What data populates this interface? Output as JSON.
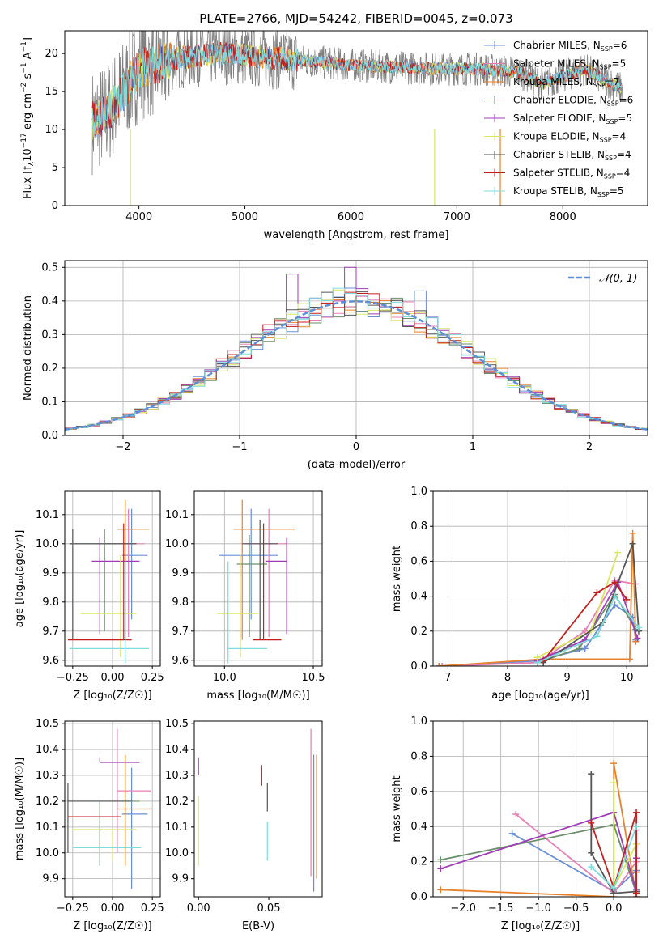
{
  "colors": {
    "Chabrier MILES": "#6a8fd8",
    "Salpeter MILES": "#e77fb6",
    "Kroupa MILES": "#e8812a",
    "Chabrier ELODIE": "#6a8f6a",
    "Salpeter ELODIE": "#a03cb8",
    "Kroupa ELODIE": "#d8e860",
    "Chabrier STELIB": "#555555",
    "Salpeter STELIB": "#c41e1e",
    "Kroupa STELIB": "#7fdcdc",
    "gaussian": "#5b8ed6",
    "spectrum_grey": "#808080"
  },
  "legend1": [
    {
      "name": "Chabrier MILES",
      "label": "Chabrier MILES, N",
      "sub": "SSP",
      "tail": "=6"
    },
    {
      "name": "Salpeter MILES",
      "label": "Salpeter MILES, N",
      "sub": "SSP",
      "tail": "=5"
    },
    {
      "name": "Kroupa MILES",
      "label": "Kroupa MILES, N",
      "sub": "SSP",
      "tail": "=7"
    },
    {
      "name": "Chabrier ELODIE",
      "label": "Chabrier ELODIE, N",
      "sub": "SSP",
      "tail": "=6"
    },
    {
      "name": "Salpeter ELODIE",
      "label": "Salpeter ELODIE, N",
      "sub": "SSP",
      "tail": "=5"
    },
    {
      "name": "Kroupa ELODIE",
      "label": "Kroupa ELODIE, N",
      "sub": "SSP",
      "tail": "=4"
    },
    {
      "name": "Chabrier STELIB",
      "label": "Chabrier STELIB, N",
      "sub": "SSP",
      "tail": "=4"
    },
    {
      "name": "Salpeter STELIB",
      "label": "Salpeter STELIB, N",
      "sub": "SSP",
      "tail": "=4"
    },
    {
      "name": "Kroupa STELIB",
      "label": "Kroupa STELIB, N",
      "sub": "SSP",
      "tail": "=5"
    }
  ],
  "chart_data": [
    {
      "id": "spectrum",
      "type": "line",
      "title": "PLATE=2766, MJD=54242, FIBERID=0045, z=0.073",
      "xlabel": "wavelength [Angstrom, rest frame]",
      "ylabel": "Flux [f",
      "ylabel_parts": [
        "Flux [f",
        "λ",
        "10",
        "−17",
        " erg cm",
        "−2",
        " s",
        "−1",
        " A",
        "−1",
        "]"
      ],
      "xlim": [
        3300,
        8800
      ],
      "ylim": [
        0,
        23
      ],
      "xticks": [
        4000,
        5000,
        6000,
        7000,
        8000
      ],
      "yticks": [
        0,
        5,
        10,
        15,
        20
      ],
      "grid": false,
      "legend_position": "upper-right",
      "data_anchor": {
        "x": [
          3550,
          3700,
          4000,
          4400,
          4800,
          5200,
          5600,
          6000,
          6400,
          6800,
          7200,
          7600,
          7800,
          8200,
          8600
        ],
        "y": [
          11,
          12,
          18,
          19.5,
          20,
          19.5,
          19,
          18.5,
          18.2,
          18,
          18,
          17.5,
          16,
          18,
          15
        ]
      }
    },
    {
      "id": "residuals",
      "type": "bar",
      "xlabel": "(data-model)/error",
      "ylabel": "Normed distribution",
      "xlim": [
        -2.5,
        2.5
      ],
      "ylim": [
        0,
        0.52
      ],
      "xticks": [
        -2,
        -1,
        0,
        1,
        2
      ],
      "yticks": [
        0.0,
        0.1,
        0.2,
        0.3,
        0.4,
        0.5
      ],
      "grid": true,
      "legend": "𝒩(0, 1)",
      "legend_position": "upper-right",
      "bin_width": 0.1,
      "peak_bins": [
        {
          "x": -0.5,
          "y": 0.48,
          "series": "Salpeter ELODIE"
        },
        {
          "x": -0.05,
          "y": 0.5,
          "series": "Salpeter ELODIE"
        },
        {
          "x": 0.55,
          "y": 0.43,
          "series": "Chabrier MILES"
        }
      ]
    },
    {
      "id": "age_vs_Z",
      "type": "scatter",
      "xlabel": "Z [log₁₀(Z/Z☉)]",
      "ylabel": "age  [log₁₀(age/yr)]",
      "xlim": [
        -0.3,
        0.3
      ],
      "ylim": [
        9.58,
        10.18
      ],
      "xticks": [
        -0.25,
        0.0,
        0.25
      ],
      "yticks": [
        9.6,
        9.7,
        9.8,
        9.9,
        10.0,
        10.1
      ],
      "grid": true,
      "points": [
        {
          "series": "Chabrier MILES",
          "x": 0.12,
          "xerr": [
            0.06,
            0.1
          ],
          "y": 9.96,
          "yerr": [
            0.22,
            0.16
          ]
        },
        {
          "series": "Salpeter MILES",
          "x": 0.1,
          "xerr": [
            0.15,
            0.1
          ],
          "y": 10.0,
          "yerr": [
            0.32,
            0.12
          ]
        },
        {
          "series": "Kroupa MILES",
          "x": 0.08,
          "xerr": [
            0.05,
            0.15
          ],
          "y": 10.05,
          "yerr": [
            0.38,
            0.1
          ]
        },
        {
          "series": "Chabrier ELODIE",
          "x": -0.05,
          "xerr": [
            0.22,
            0.2
          ],
          "y": 10.0,
          "yerr": [
            0.3,
            0.05
          ]
        },
        {
          "series": "Salpeter ELODIE",
          "x": -0.08,
          "xerr": [
            0.05,
            0.25
          ],
          "y": 9.94,
          "yerr": [
            0.25,
            0.08
          ]
        },
        {
          "series": "Kroupa ELODIE",
          "x": 0.05,
          "xerr": [
            0.25,
            0.1
          ],
          "y": 9.76,
          "yerr": [
            0.15,
            0.2
          ]
        },
        {
          "series": "Chabrier STELIB",
          "x": -0.25,
          "xerr": [
            0.02,
            0.4
          ],
          "y": 10.0,
          "yerr": [
            0.33,
            0.05
          ]
        },
        {
          "series": "Salpeter STELIB",
          "x": 0.07,
          "xerr": [
            0.35,
            0.05
          ],
          "y": 9.67,
          "yerr": [
            0.0,
            0.4
          ]
        },
        {
          "series": "Kroupa STELIB",
          "x": 0.08,
          "xerr": [
            0.35,
            0.15
          ],
          "y": 9.64,
          "yerr": [
            0.05,
            0.3
          ]
        }
      ]
    },
    {
      "id": "age_vs_mass",
      "type": "scatter",
      "xlabel": "mass [log₁₀(M/M☉)]",
      "xlim": [
        9.83,
        10.55
      ],
      "ylim": [
        9.58,
        10.18
      ],
      "xticks": [
        10.0,
        10.5
      ],
      "yticks": [
        9.6,
        9.7,
        9.8,
        9.9,
        10.0,
        10.1
      ],
      "grid": true,
      "points": [
        {
          "series": "Chabrier MILES",
          "x": 10.15,
          "xerr": [
            0.18,
            0.15
          ],
          "y": 9.96,
          "yerr": [
            0.22,
            0.16
          ]
        },
        {
          "series": "Salpeter MILES",
          "x": 10.25,
          "xerr": [
            0.15,
            0.1
          ],
          "y": 10.0,
          "yerr": [
            0.32,
            0.12
          ]
        },
        {
          "series": "Kroupa MILES",
          "x": 10.1,
          "xerr": [
            0.05,
            0.3
          ],
          "y": 10.05,
          "yerr": [
            0.38,
            0.1
          ]
        },
        {
          "series": "Chabrier ELODIE",
          "x": 10.14,
          "xerr": [
            0.07,
            0.1
          ],
          "y": 9.93,
          "yerr": [
            0.25,
            0.1
          ]
        },
        {
          "series": "Salpeter ELODIE",
          "x": 10.35,
          "xerr": [
            0.12,
            0.0
          ],
          "y": 9.94,
          "yerr": [
            0.25,
            0.08
          ]
        },
        {
          "series": "Kroupa ELODIE",
          "x": 10.09,
          "xerr": [
            0.13,
            0.1
          ],
          "y": 9.76,
          "yerr": [
            0.15,
            0.2
          ]
        },
        {
          "series": "Chabrier STELIB",
          "x": 10.2,
          "xerr": [
            0.1,
            0.1
          ],
          "y": 10.0,
          "yerr": [
            0.33,
            0.08
          ]
        },
        {
          "series": "Salpeter STELIB",
          "x": 10.22,
          "xerr": [
            0.06,
            0.1
          ],
          "y": 9.67,
          "yerr": [
            0.0,
            0.4
          ]
        },
        {
          "series": "Kroupa STELIB",
          "x": 10.02,
          "xerr": [
            0.0,
            0.22
          ],
          "y": 9.64,
          "yerr": [
            0.05,
            0.3
          ]
        }
      ]
    },
    {
      "id": "weight_vs_age",
      "type": "line",
      "xlabel": "age  [log₁₀(age/yr)]",
      "ylabel": "mass weight",
      "xlim": [
        6.75,
        10.35
      ],
      "ylim": [
        0,
        1
      ],
      "xticks": [
        7,
        8,
        9,
        10
      ],
      "yticks": [
        0.0,
        0.2,
        0.4,
        0.6,
        0.8,
        1.0
      ],
      "grid": true,
      "series": [
        {
          "name": "Chabrier MILES",
          "x": [
            6.85,
            8.5,
            9.3,
            9.8,
            10.1,
            10.15
          ],
          "y": [
            0.0,
            0.03,
            0.1,
            0.35,
            0.28,
            0.15
          ]
        },
        {
          "name": "Salpeter MILES",
          "x": [
            6.9,
            8.5,
            9.3,
            9.8,
            10.15
          ],
          "y": [
            0.0,
            0.02,
            0.2,
            0.49,
            0.47
          ]
        },
        {
          "name": "Kroupa MILES",
          "x": [
            6.85,
            8.6,
            10.05,
            10.1,
            10.15
          ],
          "y": [
            0.0,
            0.04,
            0.04,
            0.76,
            0.14
          ]
        },
        {
          "name": "Chabrier ELODIE",
          "x": [
            8.5,
            9.2,
            9.8,
            10.15
          ],
          "y": [
            0.02,
            0.1,
            0.41,
            0.21
          ]
        },
        {
          "name": "Salpeter ELODIE",
          "x": [
            8.5,
            9.3,
            9.85,
            10.18
          ],
          "y": [
            0.03,
            0.15,
            0.48,
            0.16
          ]
        },
        {
          "name": "Kroupa ELODIE",
          "x": [
            8.5,
            9.4,
            9.85
          ],
          "y": [
            0.05,
            0.2,
            0.65
          ]
        },
        {
          "name": "Chabrier STELIB",
          "x": [
            8.6,
            9.6,
            10.1,
            10.2
          ],
          "y": [
            0.02,
            0.25,
            0.7,
            0.2
          ]
        },
        {
          "name": "Salpeter STELIB",
          "x": [
            8.6,
            9.5,
            9.8,
            10.0
          ],
          "y": [
            0.03,
            0.42,
            0.48,
            0.38
          ]
        },
        {
          "name": "Kroupa STELIB",
          "x": [
            8.5,
            9.5,
            9.8,
            10.2
          ],
          "y": [
            0.02,
            0.17,
            0.4,
            0.22
          ]
        }
      ]
    },
    {
      "id": "mass_vs_Z",
      "type": "scatter",
      "xlabel": "Z [log₁₀(Z/Z☉)]",
      "ylabel": "mass [log₁₀(M/M☉)]",
      "xlim": [
        -0.3,
        0.3
      ],
      "ylim": [
        9.83,
        10.51
      ],
      "xticks": [
        -0.25,
        0.0,
        0.25
      ],
      "yticks": [
        9.9,
        10.0,
        10.1,
        10.2,
        10.3,
        10.4,
        10.5
      ],
      "grid": true,
      "points": [
        {
          "series": "Chabrier MILES",
          "x": 0.12,
          "xerr": [
            0.06,
            0.1
          ],
          "y": 10.15,
          "yerr": [
            0.29,
            0.18
          ]
        },
        {
          "series": "Salpeter MILES",
          "x": 0.03,
          "xerr": [
            0.0,
            0.21
          ],
          "y": 10.24,
          "yerr": [
            0.24,
            0.24
          ]
        },
        {
          "series": "Kroupa MILES",
          "x": 0.08,
          "xerr": [
            0.05,
            0.17
          ],
          "y": 10.17,
          "yerr": [
            0.22,
            0.21
          ]
        },
        {
          "series": "Chabrier ELODIE",
          "x": -0.08,
          "xerr": [
            0.2,
            0.25
          ],
          "y": 10.2,
          "yerr": [
            0.25,
            0.0
          ]
        },
        {
          "series": "Salpeter ELODIE",
          "x": -0.08,
          "xerr": [
            0.0,
            0.25
          ],
          "y": 10.35,
          "yerr": [
            0.0,
            0.02
          ]
        },
        {
          "series": "Kroupa ELODIE",
          "x": 0.0,
          "xerr": [
            0.25,
            0.15
          ],
          "y": 10.09,
          "yerr": [
            0.12,
            0.0
          ]
        },
        {
          "series": "Chabrier STELIB",
          "x": -0.28,
          "xerr": [
            0.0,
            0.4
          ],
          "y": 10.2,
          "yerr": [
            0.2,
            0.07
          ]
        },
        {
          "series": "Salpeter STELIB",
          "x": 0.0,
          "xerr": [
            0.28,
            0.05
          ],
          "y": 10.14,
          "yerr": [
            0.0,
            0.0
          ]
        },
        {
          "series": "Kroupa STELIB",
          "x": 0.0,
          "xerr": [
            0.25,
            0.18
          ],
          "y": 10.02,
          "yerr": [
            0.0,
            0.0
          ]
        }
      ]
    },
    {
      "id": "mass_vs_EBV",
      "type": "scatter",
      "xlabel": "E(B-V)",
      "xlim": [
        -0.003,
        0.088
      ],
      "ylim": [
        9.83,
        10.51
      ],
      "xticks": [
        0.0,
        0.05
      ],
      "yticks": [
        9.9,
        10.0,
        10.1,
        10.2,
        10.3,
        10.4,
        10.5
      ],
      "grid": false,
      "points": [
        {
          "series": "Chabrier MILES",
          "x": 0.082,
          "y": 10.12,
          "yerr": [
            0.27,
            0.26
          ]
        },
        {
          "series": "Salpeter MILES",
          "x": 0.08,
          "y": 10.2,
          "yerr": [
            0.29,
            0.28
          ]
        },
        {
          "series": "Kroupa MILES",
          "x": 0.084,
          "y": 10.14,
          "yerr": [
            0.24,
            0.24
          ]
        },
        {
          "series": "Chabrier STELIB",
          "x": 0.049,
          "y": 10.16,
          "yerr": [
            0.0,
            0.11
          ]
        },
        {
          "series": "Salpeter STELIB",
          "x": 0.045,
          "y": 10.26,
          "yerr": [
            0.0,
            0.08
          ]
        },
        {
          "series": "Kroupa STELIB",
          "x": 0.049,
          "y": 10.02,
          "yerr": [
            0.05,
            0.1
          ]
        },
        {
          "series": "Kroupa ELODIE",
          "x": 0.0,
          "y": 10.1,
          "yerr": [
            0.15,
            0.12
          ]
        },
        {
          "series": "Salpeter ELODIE",
          "x": 0.0,
          "y": 10.3,
          "yerr": [
            0.0,
            0.07
          ]
        }
      ]
    },
    {
      "id": "weight_vs_Z",
      "type": "line",
      "xlabel": "Z [log₁₀(Z/Z☉)]",
      "ylabel": "mass weight",
      "xlim": [
        -2.4,
        0.45
      ],
      "ylim": [
        0,
        1
      ],
      "xticks": [
        -2.0,
        -1.5,
        -1.0,
        -0.5,
        0.0
      ],
      "yticks": [
        0.0,
        0.2,
        0.4,
        0.6,
        0.8,
        1.0
      ],
      "grid": true,
      "series": [
        {
          "name": "Chabrier MILES",
          "x": [
            -1.35,
            -0.0,
            0.3,
            0.3
          ],
          "y": [
            0.36,
            0.03,
            0.15,
            0.04
          ]
        },
        {
          "name": "Salpeter MILES",
          "x": [
            -1.3,
            0.0,
            0.3,
            0.3
          ],
          "y": [
            0.47,
            0.02,
            0.2,
            0.38
          ]
        },
        {
          "name": "Kroupa MILES",
          "x": [
            -2.3,
            0.0,
            0.0,
            0.3,
            0.3
          ],
          "y": [
            0.04,
            0.0,
            0.76,
            0.0,
            0.14
          ]
        },
        {
          "name": "Chabrier ELODIE",
          "x": [
            -2.3,
            0.0,
            0.3
          ],
          "y": [
            0.21,
            0.41,
            0.02
          ]
        },
        {
          "name": "Salpeter ELODIE",
          "x": [
            -2.3,
            0.0,
            0.3,
            0.3
          ],
          "y": [
            0.16,
            0.48,
            0.03,
            0.22
          ]
        },
        {
          "name": "Kroupa ELODIE",
          "x": [
            0.0,
            0.0,
            0.3
          ],
          "y": [
            0.65,
            0.05,
            0.3
          ]
        },
        {
          "name": "Chabrier STELIB",
          "x": [
            -0.3,
            -0.3,
            0.0,
            0.3
          ],
          "y": [
            0.7,
            0.25,
            0.02,
            0.03
          ]
        },
        {
          "name": "Salpeter STELIB",
          "x": [
            -0.3,
            0.0,
            0.3,
            0.3
          ],
          "y": [
            0.42,
            0.05,
            0.48,
            0.02
          ]
        },
        {
          "name": "Kroupa STELIB",
          "x": [
            -0.3,
            0.0,
            0.3
          ],
          "y": [
            0.17,
            0.05,
            0.4
          ]
        }
      ]
    }
  ]
}
